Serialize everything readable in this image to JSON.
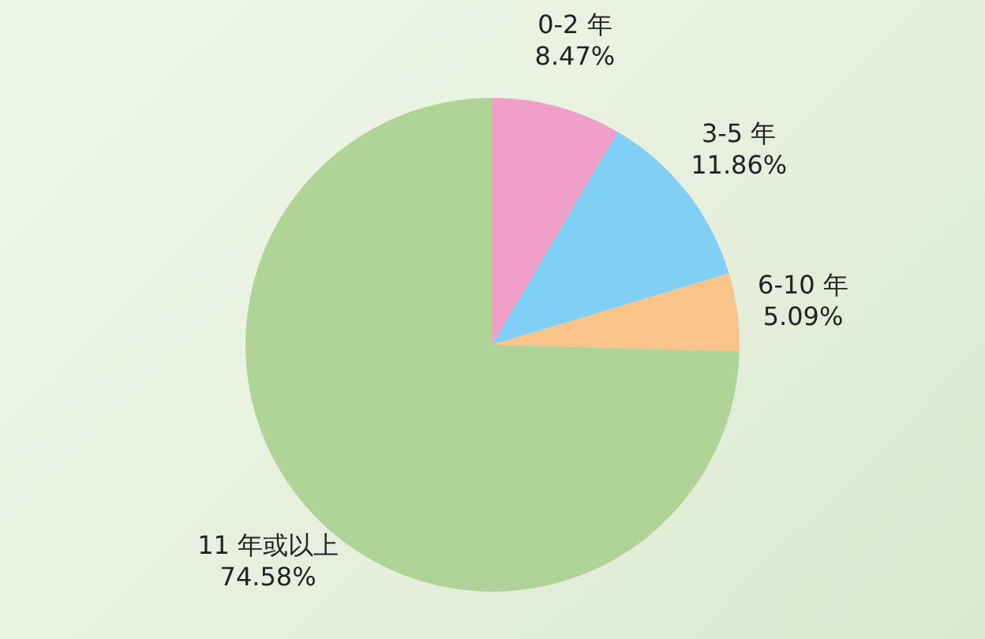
{
  "chart_data": {
    "type": "pie",
    "categories": [
      "0-2 年",
      "3-5 年",
      "6-10 年",
      "11 年或以上"
    ],
    "values": [
      8.47,
      11.86,
      5.09,
      74.58
    ],
    "colors": [
      "#f0a0c8",
      "#80d0f5",
      "#f8c48a",
      "#b0d498"
    ],
    "value_labels": [
      "8.47%",
      "11.86%",
      "5.09%",
      "74.58%"
    ],
    "legend": false
  }
}
